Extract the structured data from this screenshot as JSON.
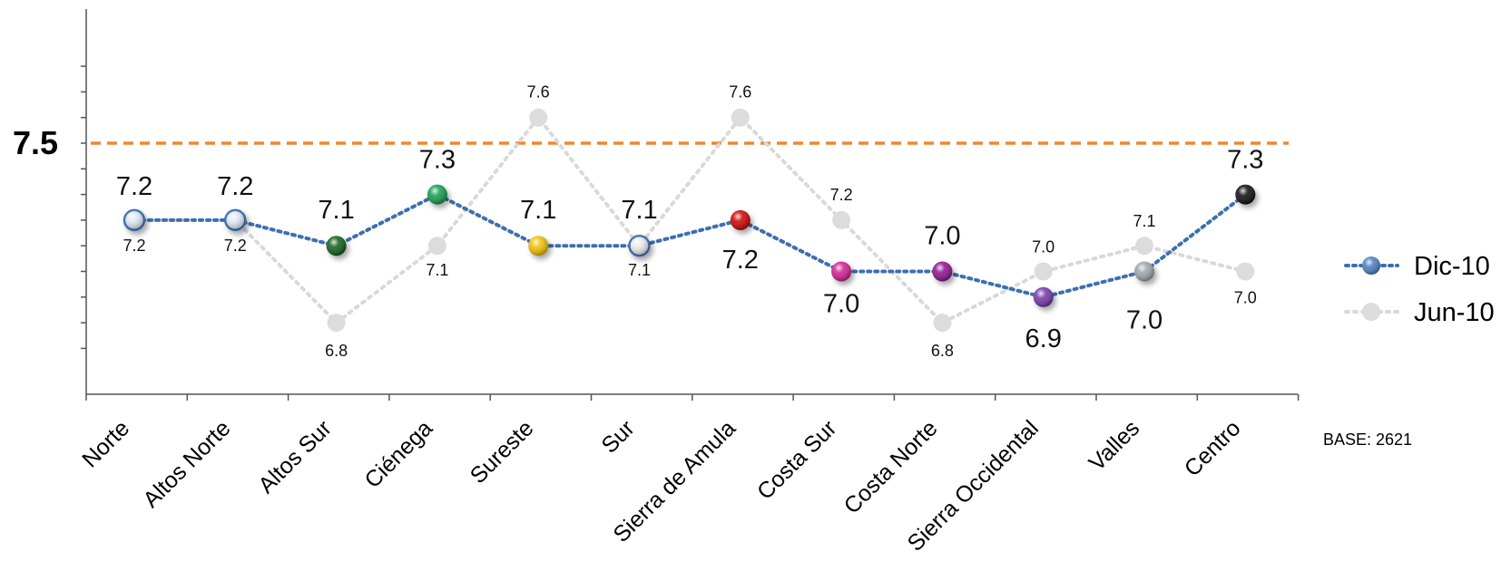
{
  "chart_data": {
    "type": "line",
    "categories": [
      "Norte",
      "Altos Norte",
      "Altos Sur",
      "Ciénega",
      "Sureste",
      "Sur",
      "Sierra de Amula",
      "Costa Sur",
      "Costa Norte",
      "Sierra Occidental",
      "Valles",
      "Centro"
    ],
    "series": [
      {
        "name": "Dic-10",
        "values": [
          7.2,
          7.2,
          7.1,
          7.3,
          7.1,
          7.1,
          7.2,
          7.0,
          7.0,
          6.9,
          7.0,
          7.3
        ],
        "labels": [
          "7.2",
          "7.2",
          "7.1",
          "7.3",
          "7.1",
          "7.1",
          "7.2",
          "7.0",
          "7.0",
          "6.9",
          "7.0",
          "7.3"
        ],
        "line_color": "#3d6fb0",
        "marker_colors": [
          "#dfe7f3",
          "#dfe7f3",
          "#0b5d16",
          "#0f9d48",
          "#f0c000",
          "#e9e9e9",
          "#cc0000",
          "#d0198f",
          "#8b0f8b",
          "#7433a8",
          "#9aa3ad",
          "#080808"
        ]
      },
      {
        "name": "Jun-10",
        "values": [
          7.2,
          7.2,
          6.8,
          7.1,
          7.6,
          7.1,
          7.6,
          7.2,
          6.8,
          7.0,
          7.1,
          7.0
        ],
        "labels": [
          "7.2",
          "7.2",
          "6.8",
          "7.1",
          "7.6",
          "7.1",
          "7.6",
          "7.2",
          "6.8",
          "7.0",
          "7.1",
          "7.0"
        ],
        "line_color": "#d9d9d9",
        "marker_color": "#dcdcdc"
      }
    ],
    "reference_line": {
      "value": 7.5,
      "label": "7.5",
      "color": "#f0882d"
    },
    "ylim": [
      6.7,
      7.8
    ],
    "grid": false,
    "legend_position": "right",
    "note": "BASE: 2621"
  }
}
